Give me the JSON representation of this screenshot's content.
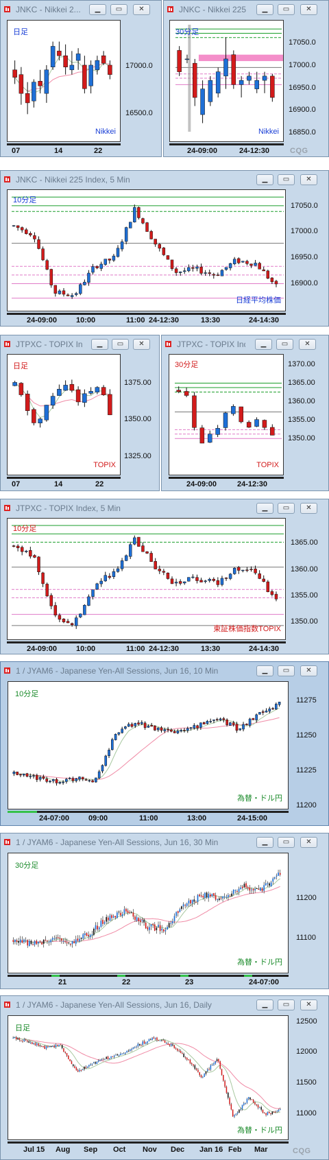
{
  "logo_text": "CQG",
  "colors": {
    "up": "#1e6fd6",
    "down": "#d21b1b",
    "ma_short": "#a8c8a0",
    "ma_long": "#f08aa5",
    "green_line": "#1a9e2a",
    "pink_line": "#e07ac8",
    "gray_line": "#777777",
    "band": "#f06ab8"
  },
  "panels": [
    {
      "id": "nikkei-daily",
      "title": "JNKC - Nikkei 2...",
      "timeframe": "日足",
      "timeframe_color": "#1a3fd6",
      "name_label": "Nikkei",
      "name_color": "#1a3fd6",
      "y_ticks": [
        "17000.0",
        "16500.0"
      ],
      "x_ticks": [
        "07",
        "14",
        "22"
      ]
    },
    {
      "id": "nikkei-30min",
      "title": "JNKC - Nikkei 225",
      "timeframe": "30分足",
      "timeframe_color": "#1a3fd6",
      "name_label": "Nikkei",
      "name_color": "#1a3fd6",
      "y_ticks": [
        "17050.0",
        "17000.0",
        "16950.0",
        "16900.0",
        "16850.0"
      ],
      "x_ticks": [
        "24-09:00",
        "24-12:30"
      ]
    },
    {
      "id": "nikkei-5min",
      "title": "JNKC - Nikkei 225 Index, 5 Min",
      "timeframe": "10分足",
      "timeframe_color": "#1a3fd6",
      "name_label": "日経平均株価",
      "name_color": "#1a3fd6",
      "y_ticks": [
        "17050.0",
        "17000.0",
        "16950.0",
        "16900.0"
      ],
      "x_ticks": [
        "24-09:00",
        "10:00",
        "11:00",
        "24-12:30",
        "13:30",
        "24-14:30"
      ]
    },
    {
      "id": "topix-daily",
      "title": "JTPXC - TOPIX In...",
      "timeframe": "日足",
      "timeframe_color": "#d21b1b",
      "name_label": "TOPIX",
      "name_color": "#d21b1b",
      "y_ticks": [
        "1375.00",
        "1350.00",
        "1325.00"
      ],
      "x_ticks": [
        "07",
        "14",
        "22"
      ]
    },
    {
      "id": "topix-30min",
      "title": "JTPXC - TOPIX Ind...",
      "timeframe": "30分足",
      "timeframe_color": "#d21b1b",
      "name_label": "TOPIX",
      "name_color": "#d21b1b",
      "y_ticks": [
        "1370.00",
        "1365.00",
        "1360.00",
        "1355.00",
        "1350.00"
      ],
      "x_ticks": [
        "24-09:00",
        "24-12:30"
      ]
    },
    {
      "id": "topix-5min",
      "title": "JTPXC - TOPIX Index, 5 Min",
      "timeframe": "10分足",
      "timeframe_color": "#d21b1b",
      "name_label": "東証株価指数TOPIX",
      "name_color": "#d21b1b",
      "y_ticks": [
        "1365.00",
        "1360.00",
        "1355.00",
        "1350.00"
      ],
      "x_ticks": [
        "24-09:00",
        "10:00",
        "11:00",
        "24-12:30",
        "13:30",
        "24-14:30"
      ]
    },
    {
      "id": "yen-10min",
      "title": "1 / JYAM6 - Japanese Yen-All Sessions, Jun 16, 10 Min",
      "timeframe": "10分足",
      "timeframe_color": "#1a8a2a",
      "name_label": "為替・ドル円",
      "name_color": "#1a8a2a",
      "y_ticks": [
        "11275",
        "11250",
        "11225",
        "11200"
      ],
      "x_ticks": [
        "24-07:00",
        "09:00",
        "11:00",
        "13:00",
        "24-15:00"
      ]
    },
    {
      "id": "yen-30min",
      "title": "1 / JYAM6 - Japanese Yen-All Sessions, Jun 16, 30 Min",
      "timeframe": "30分足",
      "timeframe_color": "#1a8a2a",
      "name_label": "為替・ドル円",
      "name_color": "#1a8a2a",
      "y_ticks": [
        "11200",
        "11100"
      ],
      "x_ticks": [
        "21",
        "22",
        "23",
        "24-07:00"
      ]
    },
    {
      "id": "yen-daily",
      "title": "1 / JYAM6 - Japanese Yen-All Sessions, Jun 16, Daily",
      "timeframe": "日足",
      "timeframe_color": "#1a8a2a",
      "name_label": "為替・ドル円",
      "name_color": "#1a8a2a",
      "y_ticks": [
        "12500",
        "12000",
        "11500",
        "11000"
      ],
      "x_ticks": [
        "Jul 15",
        "Aug",
        "Sep",
        "Oct",
        "Nov",
        "Dec",
        "Jan 16",
        "Feb",
        "Mar"
      ]
    }
  ],
  "chart_data": [
    {
      "type": "candlestick",
      "panel": "nikkei-daily",
      "ylim": [
        16250,
        17400
      ],
      "candles": [
        [
          16950,
          17050,
          16800,
          16870
        ],
        [
          16900,
          16980,
          16580,
          16700
        ],
        [
          16700,
          16820,
          16480,
          16600
        ],
        [
          16620,
          16850,
          16550,
          16820
        ],
        [
          16830,
          16950,
          16700,
          16780
        ],
        [
          16700,
          17000,
          16600,
          16950
        ],
        [
          16980,
          17250,
          16950,
          17200
        ],
        [
          17150,
          17250,
          17050,
          17100
        ],
        [
          17100,
          17220,
          16900,
          16980
        ],
        [
          16950,
          17150,
          16900,
          17000
        ],
        [
          17050,
          17180,
          16950,
          17120
        ],
        [
          17000,
          17100,
          16700,
          16750
        ],
        [
          16780,
          17050,
          16700,
          17000
        ],
        [
          16950,
          17100,
          16900,
          17050
        ],
        [
          17100,
          17150,
          17000,
          17020
        ],
        [
          17000,
          17050,
          16850,
          16900
        ]
      ]
    },
    {
      "type": "candlestick",
      "panel": "nikkei-30min",
      "ylim": [
        16820,
        17070
      ],
      "candles": [
        [
          17010,
          17020,
          16950,
          16960
        ],
        [
          16990,
          17000,
          16980,
          16990
        ],
        [
          16980,
          16990,
          16880,
          16900
        ],
        [
          16860,
          16940,
          16840,
          16920
        ],
        [
          16890,
          16950,
          16880,
          16940
        ],
        [
          16910,
          16970,
          16900,
          16960
        ],
        [
          16950,
          17040,
          16920,
          16990
        ],
        [
          17000,
          17010,
          16920,
          16930
        ],
        [
          16930,
          16950,
          16900,
          16940
        ],
        [
          16940,
          16960,
          16930,
          16950
        ],
        [
          16920,
          16960,
          16910,
          16940
        ],
        [
          16940,
          16960,
          16910,
          16950
        ],
        [
          16950,
          16955,
          16890,
          16900
        ]
      ],
      "lines": [
        {
          "value": 17060,
          "color": "green",
          "style": "solid"
        },
        {
          "value": 17050,
          "color": "green",
          "style": "solid"
        },
        {
          "value": 17040,
          "color": "green",
          "style": "dashed"
        },
        {
          "value": 16970,
          "color": "gray",
          "style": "solid"
        },
        {
          "value": 16955,
          "color": "pink",
          "style": "dashed"
        },
        {
          "value": 16945,
          "color": "pink",
          "style": "dashed"
        },
        {
          "value": 16930,
          "color": "pink",
          "style": "solid"
        }
      ],
      "band": [
        16985,
        17000
      ]
    },
    {
      "type": "candlestick",
      "panel": "nikkei-5min",
      "ylim": [
        16870,
        17060
      ]
    },
    {
      "type": "candlestick",
      "panel": "topix-daily",
      "ylim": [
        1318,
        1388
      ]
    },
    {
      "type": "candlestick",
      "panel": "topix-30min",
      "ylim": [
        1348,
        1372
      ],
      "lines": [
        {
          "value": 1366.5,
          "color": "green",
          "style": "solid"
        },
        {
          "value": 1365.5,
          "color": "green",
          "style": "solid"
        },
        {
          "value": 1364.5,
          "color": "green",
          "style": "dashed"
        },
        {
          "value": 1360,
          "color": "gray",
          "style": "solid"
        },
        {
          "value": 1356,
          "color": "pink",
          "style": "dashed"
        },
        {
          "value": 1355,
          "color": "pink",
          "style": "dashed"
        },
        {
          "value": 1354,
          "color": "pink",
          "style": "solid"
        }
      ]
    },
    {
      "type": "candlestick",
      "panel": "topix-5min",
      "ylim": [
        1348,
        1368
      ]
    },
    {
      "type": "candlestick",
      "panel": "yen-10min",
      "ylim": [
        11195,
        11285
      ]
    },
    {
      "type": "candlestick",
      "panel": "yen-30min",
      "ylim": [
        11060,
        11300
      ]
    },
    {
      "type": "candlestick",
      "panel": "yen-daily",
      "ylim": [
        10850,
        12550
      ]
    }
  ]
}
